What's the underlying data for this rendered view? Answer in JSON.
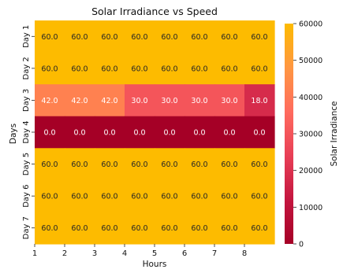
{
  "chart_data": {
    "type": "heatmap",
    "title": "Solar Irradiance vs Speed",
    "xlabel": "Hours",
    "ylabel": "Days",
    "x_tick_labels": [
      "1",
      "2",
      "3",
      "4",
      "5",
      "6",
      "7",
      "8"
    ],
    "y_tick_labels": [
      "Day 1",
      "Day 2",
      "Day 3",
      "Day 4",
      "Day 5",
      "Day 6",
      "Day 7"
    ],
    "values": [
      [
        60.0,
        60.0,
        60.0,
        60.0,
        60.0,
        60.0,
        60.0,
        60.0
      ],
      [
        60.0,
        60.0,
        60.0,
        60.0,
        60.0,
        60.0,
        60.0,
        60.0
      ],
      [
        42.0,
        42.0,
        42.0,
        30.0,
        30.0,
        30.0,
        30.0,
        18.0
      ],
      [
        0.0,
        0.0,
        0.0,
        0.0,
        0.0,
        0.0,
        0.0,
        0.0
      ],
      [
        60.0,
        60.0,
        60.0,
        60.0,
        60.0,
        60.0,
        60.0,
        60.0
      ],
      [
        60.0,
        60.0,
        60.0,
        60.0,
        60.0,
        60.0,
        60.0,
        60.0
      ],
      [
        60.0,
        60.0,
        60.0,
        60.0,
        60.0,
        60.0,
        60.0,
        60.0
      ]
    ],
    "colorbar": {
      "label": "Solar Irradiance",
      "range": [
        0,
        60000
      ],
      "ticks": [
        0,
        10000,
        20000,
        30000,
        40000,
        50000,
        60000
      ]
    },
    "colormap": [
      "#a50026",
      "#c4163f",
      "#e83f56",
      "#ff6b5e",
      "#ff9742",
      "#fdbb00"
    ],
    "grid": false,
    "legend": "colorbar-right"
  }
}
